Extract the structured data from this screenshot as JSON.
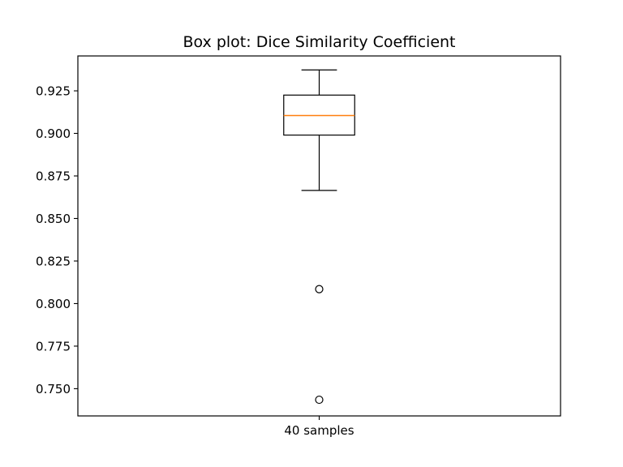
{
  "chart_data": {
    "type": "box",
    "title": "Box plot: Dice Similarity Coefficient",
    "xlabel": "",
    "ylabel": "",
    "categories": [
      "40 samples"
    ],
    "ylim": [
      0.734,
      0.9455
    ],
    "yticks": [
      0.75,
      0.775,
      0.8,
      0.825,
      0.85,
      0.875,
      0.9,
      0.925
    ],
    "ytick_labels": [
      "0.750",
      "0.775",
      "0.800",
      "0.825",
      "0.850",
      "0.875",
      "0.900",
      "0.925"
    ],
    "series": [
      {
        "whisker_low": 0.8665,
        "q1": 0.899,
        "median": 0.9105,
        "q3": 0.9225,
        "whisker_high": 0.9373,
        "outliers": [
          0.8085,
          0.7435
        ]
      }
    ],
    "grid": false,
    "colors": {
      "box": "#000000",
      "median": "#ff7f0e"
    }
  }
}
